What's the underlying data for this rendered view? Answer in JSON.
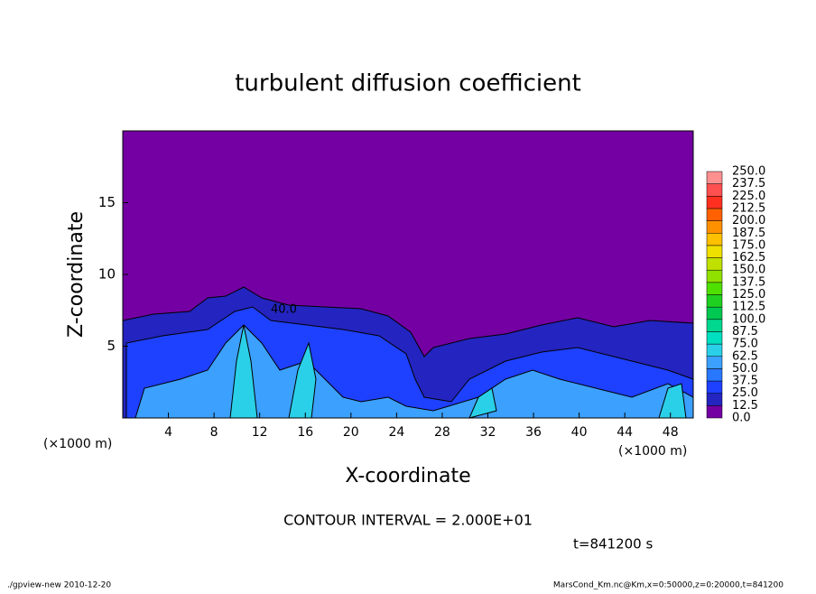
{
  "chart_data": {
    "type": "contour",
    "title": "turbulent diffusion coefficient",
    "x_label": "X-coordinate",
    "y_label": "Z-coordinate",
    "x_unit": "(×1000 m)",
    "xlim": [
      0,
      50
    ],
    "xticks": [
      4,
      8,
      12,
      16,
      20,
      24,
      28,
      32,
      36,
      40,
      44,
      48
    ],
    "ylim": [
      0,
      20
    ],
    "yticks": [
      5,
      10,
      15
    ],
    "levels": [
      {
        "value": 0,
        "label": "0.0"
      },
      {
        "value": 12.5,
        "label": "12.5"
      },
      {
        "value": 25,
        "label": "25.0"
      },
      {
        "value": 37.5,
        "label": "37.5"
      },
      {
        "value": 50,
        "label": "50.0"
      },
      {
        "value": 62.5,
        "label": "62.5"
      },
      {
        "value": 75,
        "label": "75.0"
      },
      {
        "value": 87.5,
        "label": "87.5"
      },
      {
        "value": 100,
        "label": "100.0"
      },
      {
        "value": 112.5,
        "label": "112.5"
      },
      {
        "value": 125,
        "label": "125.0"
      },
      {
        "value": 137.5,
        "label": "137.5"
      },
      {
        "value": 150,
        "label": "150.0"
      },
      {
        "value": 162.5,
        "label": "162.5"
      },
      {
        "value": 175,
        "label": "175.0"
      },
      {
        "value": 187.5,
        "label": "187.5"
      },
      {
        "value": 200,
        "label": "200.0"
      },
      {
        "value": 212.5,
        "label": "212.5"
      },
      {
        "value": 225,
        "label": "225.0"
      },
      {
        "value": 237.5,
        "label": "237.5"
      },
      {
        "value": 250,
        "label": "250.0"
      }
    ],
    "colors": [
      "#7400a4",
      "#2424c0",
      "#1e40ff",
      "#2878ff",
      "#3ca0ff",
      "#2ad0e8",
      "#00e0c0",
      "#00d890",
      "#00c850",
      "#20d020",
      "#50e000",
      "#90e000",
      "#c0e000",
      "#f0e000",
      "#ffc000",
      "#ff9000",
      "#ff6000",
      "#ff3020",
      "#ff5050",
      "#ff9090"
    ],
    "contour_label": "40.0",
    "contour_interval": "CONTOUR INTERVAL = 2.000E+01",
    "time": "t=841200 s",
    "footer_left": "./gpview-new  2010-12-20",
    "footer_right": "MarsCond_Km.nc@Km,x=0:50000,z=0:20000,t=841200"
  }
}
